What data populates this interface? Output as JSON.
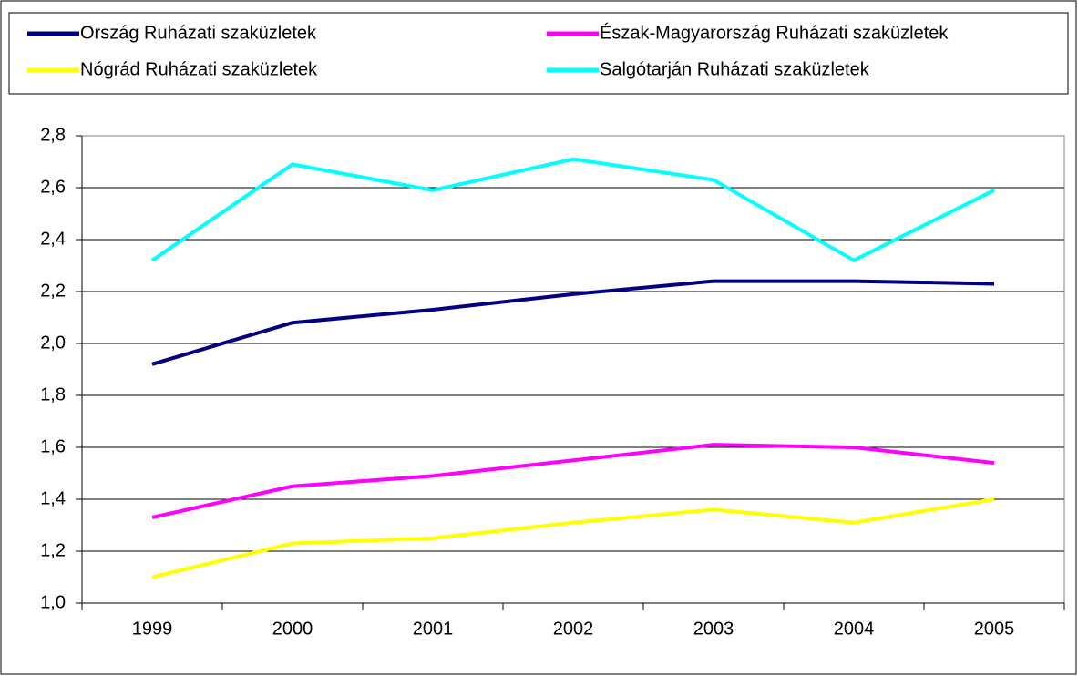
{
  "chart_data": {
    "type": "line",
    "categories": [
      "1999",
      "2000",
      "2001",
      "2002",
      "2003",
      "2004",
      "2005"
    ],
    "series": [
      {
        "name": "Ország Ruházati szaküzletek",
        "color": "#000080",
        "values": [
          1.92,
          2.08,
          2.13,
          2.19,
          2.24,
          2.24,
          2.23
        ]
      },
      {
        "name": "Észak-Magyarország Ruházati szaküzletek",
        "color": "#ff00ff",
        "values": [
          1.33,
          1.45,
          1.49,
          1.55,
          1.61,
          1.6,
          1.54
        ]
      },
      {
        "name": "Nógrád Ruházati szaküzletek",
        "color": "#ffff00",
        "values": [
          1.1,
          1.23,
          1.25,
          1.31,
          1.36,
          1.31,
          1.4
        ]
      },
      {
        "name": "Salgótarján Ruházati szaküzletek",
        "color": "#00ffff",
        "values": [
          2.32,
          2.69,
          2.59,
          2.71,
          2.63,
          2.32,
          2.59
        ]
      }
    ],
    "ylim": [
      1.0,
      2.8
    ],
    "yticks": [
      {
        "value": 1.0,
        "label": "1,0"
      },
      {
        "value": 1.2,
        "label": "1,2"
      },
      {
        "value": 1.4,
        "label": "1,4"
      },
      {
        "value": 1.6,
        "label": "1,6"
      },
      {
        "value": 1.8,
        "label": "1,8"
      },
      {
        "value": 2.0,
        "label": "2,0"
      },
      {
        "value": 2.2,
        "label": "2,2"
      },
      {
        "value": 2.4,
        "label": "2,4"
      },
      {
        "value": 2.6,
        "label": "2,6"
      },
      {
        "value": 2.8,
        "label": "2,8"
      }
    ],
    "grid": true
  }
}
